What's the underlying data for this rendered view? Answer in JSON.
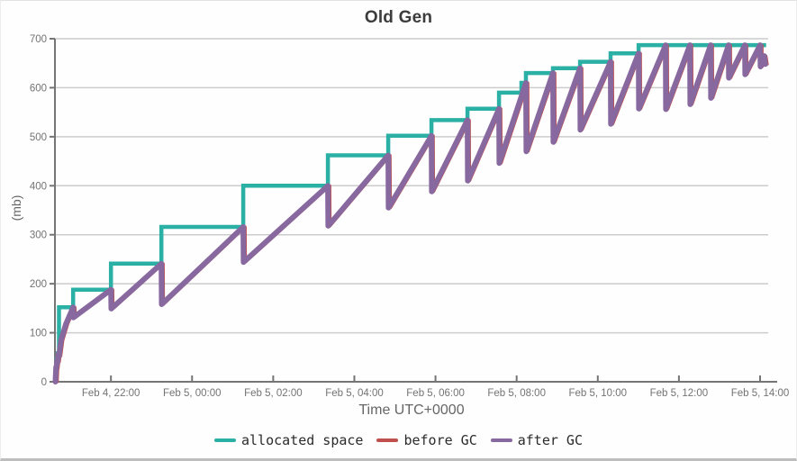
{
  "chart_data": {
    "type": "line",
    "title": "Old Gen",
    "xlabel": "Time UTC+0000",
    "ylabel": "(mb)",
    "ylim": [
      0,
      700
    ],
    "yticks": [
      0,
      100,
      200,
      300,
      400,
      500,
      600,
      700
    ],
    "x_unit_hours_since": "Feb 4, 20:00 UTC",
    "xlim": [
      0.62,
      18.2
    ],
    "grid": "horizontal",
    "legend_position": "bottom",
    "xticks": [
      {
        "h": 2,
        "label": "Feb 4, 22:00"
      },
      {
        "h": 4,
        "label": "Feb 5, 00:00"
      },
      {
        "h": 6,
        "label": "Feb 5, 02:00"
      },
      {
        "h": 8,
        "label": "Feb 5, 04:00"
      },
      {
        "h": 10,
        "label": "Feb 5, 06:00"
      },
      {
        "h": 12,
        "label": "Feb 5, 08:00"
      },
      {
        "h": 14,
        "label": "Feb 5, 10:00"
      },
      {
        "h": 16,
        "label": "Feb 5, 12:00"
      },
      {
        "h": 18,
        "label": "Feb 5, 14:00"
      }
    ],
    "series": [
      {
        "name": "allocated space",
        "color": "#2ab0a5",
        "stroke_width": 4.5,
        "style": "step",
        "points": [
          [
            0.63,
            30
          ],
          [
            0.655,
            30
          ],
          [
            0.655,
            46
          ],
          [
            0.69,
            46
          ],
          [
            0.69,
            58
          ],
          [
            0.72,
            58
          ],
          [
            0.72,
            152
          ],
          [
            1.068,
            152
          ],
          [
            1.068,
            188
          ],
          [
            2.0,
            188
          ],
          [
            2.0,
            241
          ],
          [
            3.243,
            241
          ],
          [
            3.243,
            316
          ],
          [
            5.262,
            316
          ],
          [
            5.262,
            400
          ],
          [
            7.348,
            400
          ],
          [
            7.348,
            462
          ],
          [
            8.835,
            462
          ],
          [
            8.835,
            502
          ],
          [
            9.9,
            502
          ],
          [
            9.9,
            534
          ],
          [
            10.788,
            534
          ],
          [
            10.788,
            557
          ],
          [
            11.565,
            557
          ],
          [
            11.565,
            590
          ],
          [
            12.119,
            590
          ],
          [
            12.119,
            610
          ],
          [
            12.23,
            610
          ],
          [
            12.23,
            630
          ],
          [
            12.896,
            630
          ],
          [
            12.896,
            640
          ],
          [
            13.562,
            640
          ],
          [
            13.562,
            653
          ],
          [
            14.316,
            653
          ],
          [
            14.316,
            670
          ],
          [
            15.005,
            670
          ],
          [
            15.005,
            687
          ],
          [
            18.15,
            687
          ]
        ]
      },
      {
        "name": "before GC",
        "color": "#c0504d",
        "stroke_width": 3,
        "style": "line",
        "points": [
          [
            0.68,
            0
          ],
          [
            0.695,
            30
          ],
          [
            0.7,
            26
          ],
          [
            0.725,
            46
          ],
          [
            0.732,
            40
          ],
          [
            0.76,
            58
          ],
          [
            0.767,
            52
          ],
          [
            0.82,
            85
          ],
          [
            0.94,
            118
          ],
          [
            1.118,
            152
          ],
          [
            1.125,
            131
          ],
          [
            2.05,
            188
          ],
          [
            2.057,
            149
          ],
          [
            3.293,
            241
          ],
          [
            3.3,
            158
          ],
          [
            5.312,
            316
          ],
          [
            5.319,
            244
          ],
          [
            7.398,
            400
          ],
          [
            7.405,
            318
          ],
          [
            8.885,
            462
          ],
          [
            8.892,
            355
          ],
          [
            9.95,
            502
          ],
          [
            9.957,
            388
          ],
          [
            10.838,
            534
          ],
          [
            10.845,
            410
          ],
          [
            11.615,
            557
          ],
          [
            11.622,
            446
          ],
          [
            12.28,
            610
          ],
          [
            12.287,
            470
          ],
          [
            12.946,
            630
          ],
          [
            12.953,
            489
          ],
          [
            13.612,
            640
          ],
          [
            13.619,
            514
          ],
          [
            14.366,
            653
          ],
          [
            14.373,
            526
          ],
          [
            15.055,
            670
          ],
          [
            15.062,
            557
          ],
          [
            15.721,
            687
          ],
          [
            15.728,
            556
          ],
          [
            16.32,
            687
          ],
          [
            16.327,
            566
          ],
          [
            16.831,
            687
          ],
          [
            16.838,
            579
          ],
          [
            17.274,
            687
          ],
          [
            17.281,
            620
          ],
          [
            17.674,
            687
          ],
          [
            17.681,
            627
          ],
          [
            18.051,
            687
          ],
          [
            18.058,
            643
          ],
          [
            18.15,
            665
          ],
          [
            18.18,
            648
          ]
        ]
      },
      {
        "name": "after GC",
        "color": "#87689f",
        "stroke_width": 6,
        "style": "line",
        "points": [
          [
            0.632,
            0
          ],
          [
            0.647,
            30
          ],
          [
            0.652,
            26
          ],
          [
            0.677,
            46
          ],
          [
            0.684,
            40
          ],
          [
            0.712,
            58
          ],
          [
            0.719,
            52
          ],
          [
            0.77,
            85
          ],
          [
            0.89,
            118
          ],
          [
            1.068,
            152
          ],
          [
            1.075,
            131
          ],
          [
            2.0,
            188
          ],
          [
            2.007,
            149
          ],
          [
            3.243,
            241
          ],
          [
            3.25,
            158
          ],
          [
            5.262,
            316
          ],
          [
            5.269,
            244
          ],
          [
            7.348,
            400
          ],
          [
            7.355,
            318
          ],
          [
            8.835,
            462
          ],
          [
            8.842,
            355
          ],
          [
            9.9,
            502
          ],
          [
            9.907,
            388
          ],
          [
            10.788,
            534
          ],
          [
            10.795,
            410
          ],
          [
            11.565,
            557
          ],
          [
            11.572,
            446
          ],
          [
            12.23,
            610
          ],
          [
            12.237,
            470
          ],
          [
            12.896,
            630
          ],
          [
            12.903,
            489
          ],
          [
            13.562,
            640
          ],
          [
            13.569,
            514
          ],
          [
            14.316,
            653
          ],
          [
            14.323,
            526
          ],
          [
            15.005,
            670
          ],
          [
            15.012,
            557
          ],
          [
            15.671,
            687
          ],
          [
            15.678,
            556
          ],
          [
            16.27,
            687
          ],
          [
            16.277,
            566
          ],
          [
            16.781,
            687
          ],
          [
            16.788,
            579
          ],
          [
            17.224,
            687
          ],
          [
            17.231,
            620
          ],
          [
            17.624,
            687
          ],
          [
            17.631,
            627
          ],
          [
            18.001,
            687
          ],
          [
            18.008,
            643
          ],
          [
            18.1,
            665
          ],
          [
            18.13,
            648
          ]
        ]
      }
    ],
    "colors": {
      "grid": "#cccccc",
      "axis": "#757575",
      "tick_label": "#737373",
      "title": "#3c3c3c",
      "axis_title": "#666666"
    }
  }
}
